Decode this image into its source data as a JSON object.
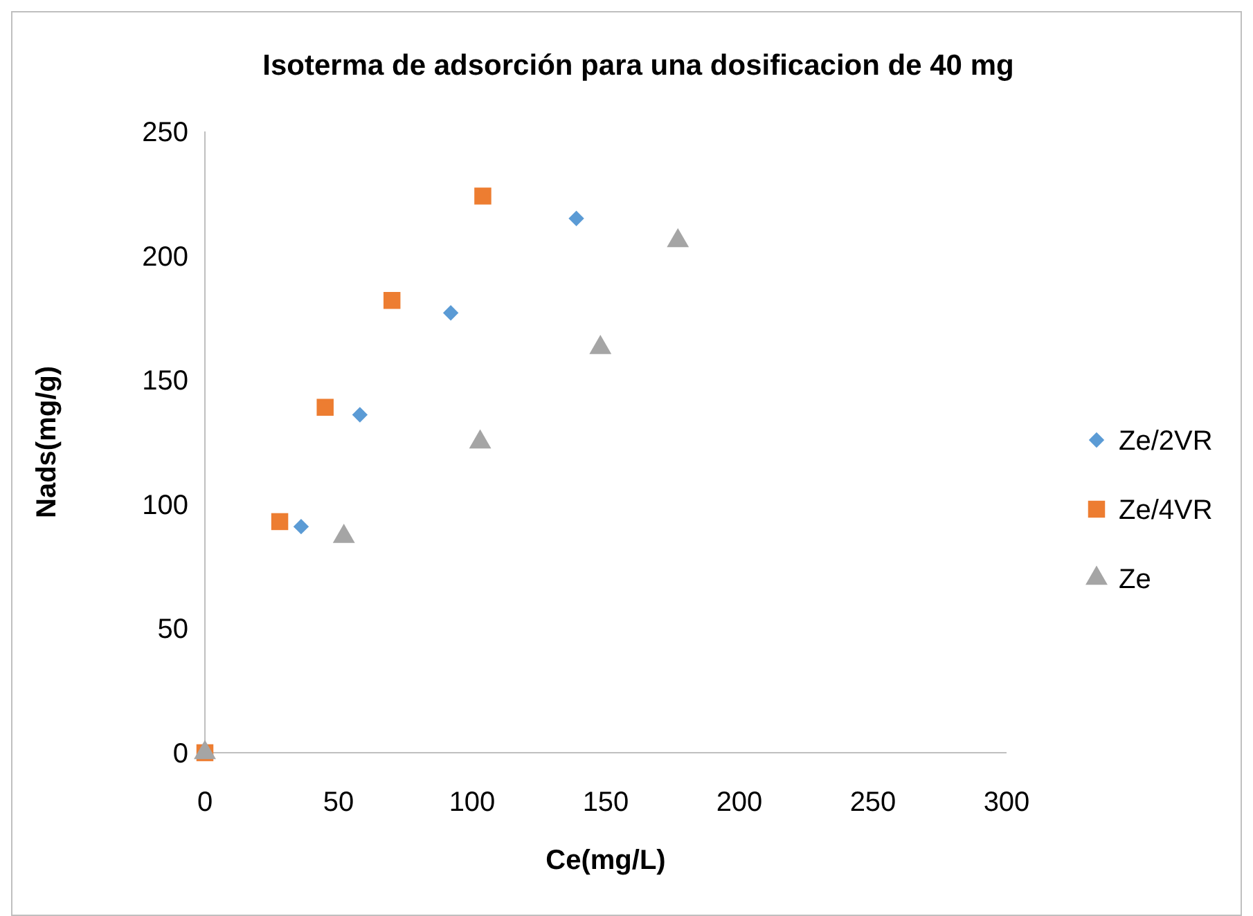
{
  "chart_data": {
    "type": "scatter",
    "title": "Isoterma de adsorción para una dosificacion de 40 mg",
    "xlabel": "Ce(mg/L)",
    "ylabel": "Nads(mg/g)",
    "xlim": [
      0,
      300
    ],
    "xticks": [
      0,
      50,
      100,
      150,
      200,
      250,
      300
    ],
    "ylim": [
      0,
      250
    ],
    "yticks": [
      0,
      50,
      100,
      150,
      200,
      250
    ],
    "grid": false,
    "legend": "right",
    "series": [
      {
        "name": "Ze/2VR",
        "color": "#5b9bd5",
        "marker": "diamond",
        "x": [
          36,
          58,
          92,
          139
        ],
        "values": [
          91,
          136,
          177,
          215
        ]
      },
      {
        "name": "Ze/4VR",
        "color": "#ed7d31",
        "marker": "square",
        "x": [
          0,
          28,
          45,
          70,
          104
        ],
        "values": [
          0,
          93,
          139,
          182,
          224
        ]
      },
      {
        "name": "Ze",
        "color": "#a5a5a5",
        "marker": "triangle",
        "x": [
          0,
          52,
          103,
          148,
          177
        ],
        "values": [
          0,
          87,
          125,
          163,
          206
        ]
      }
    ]
  }
}
